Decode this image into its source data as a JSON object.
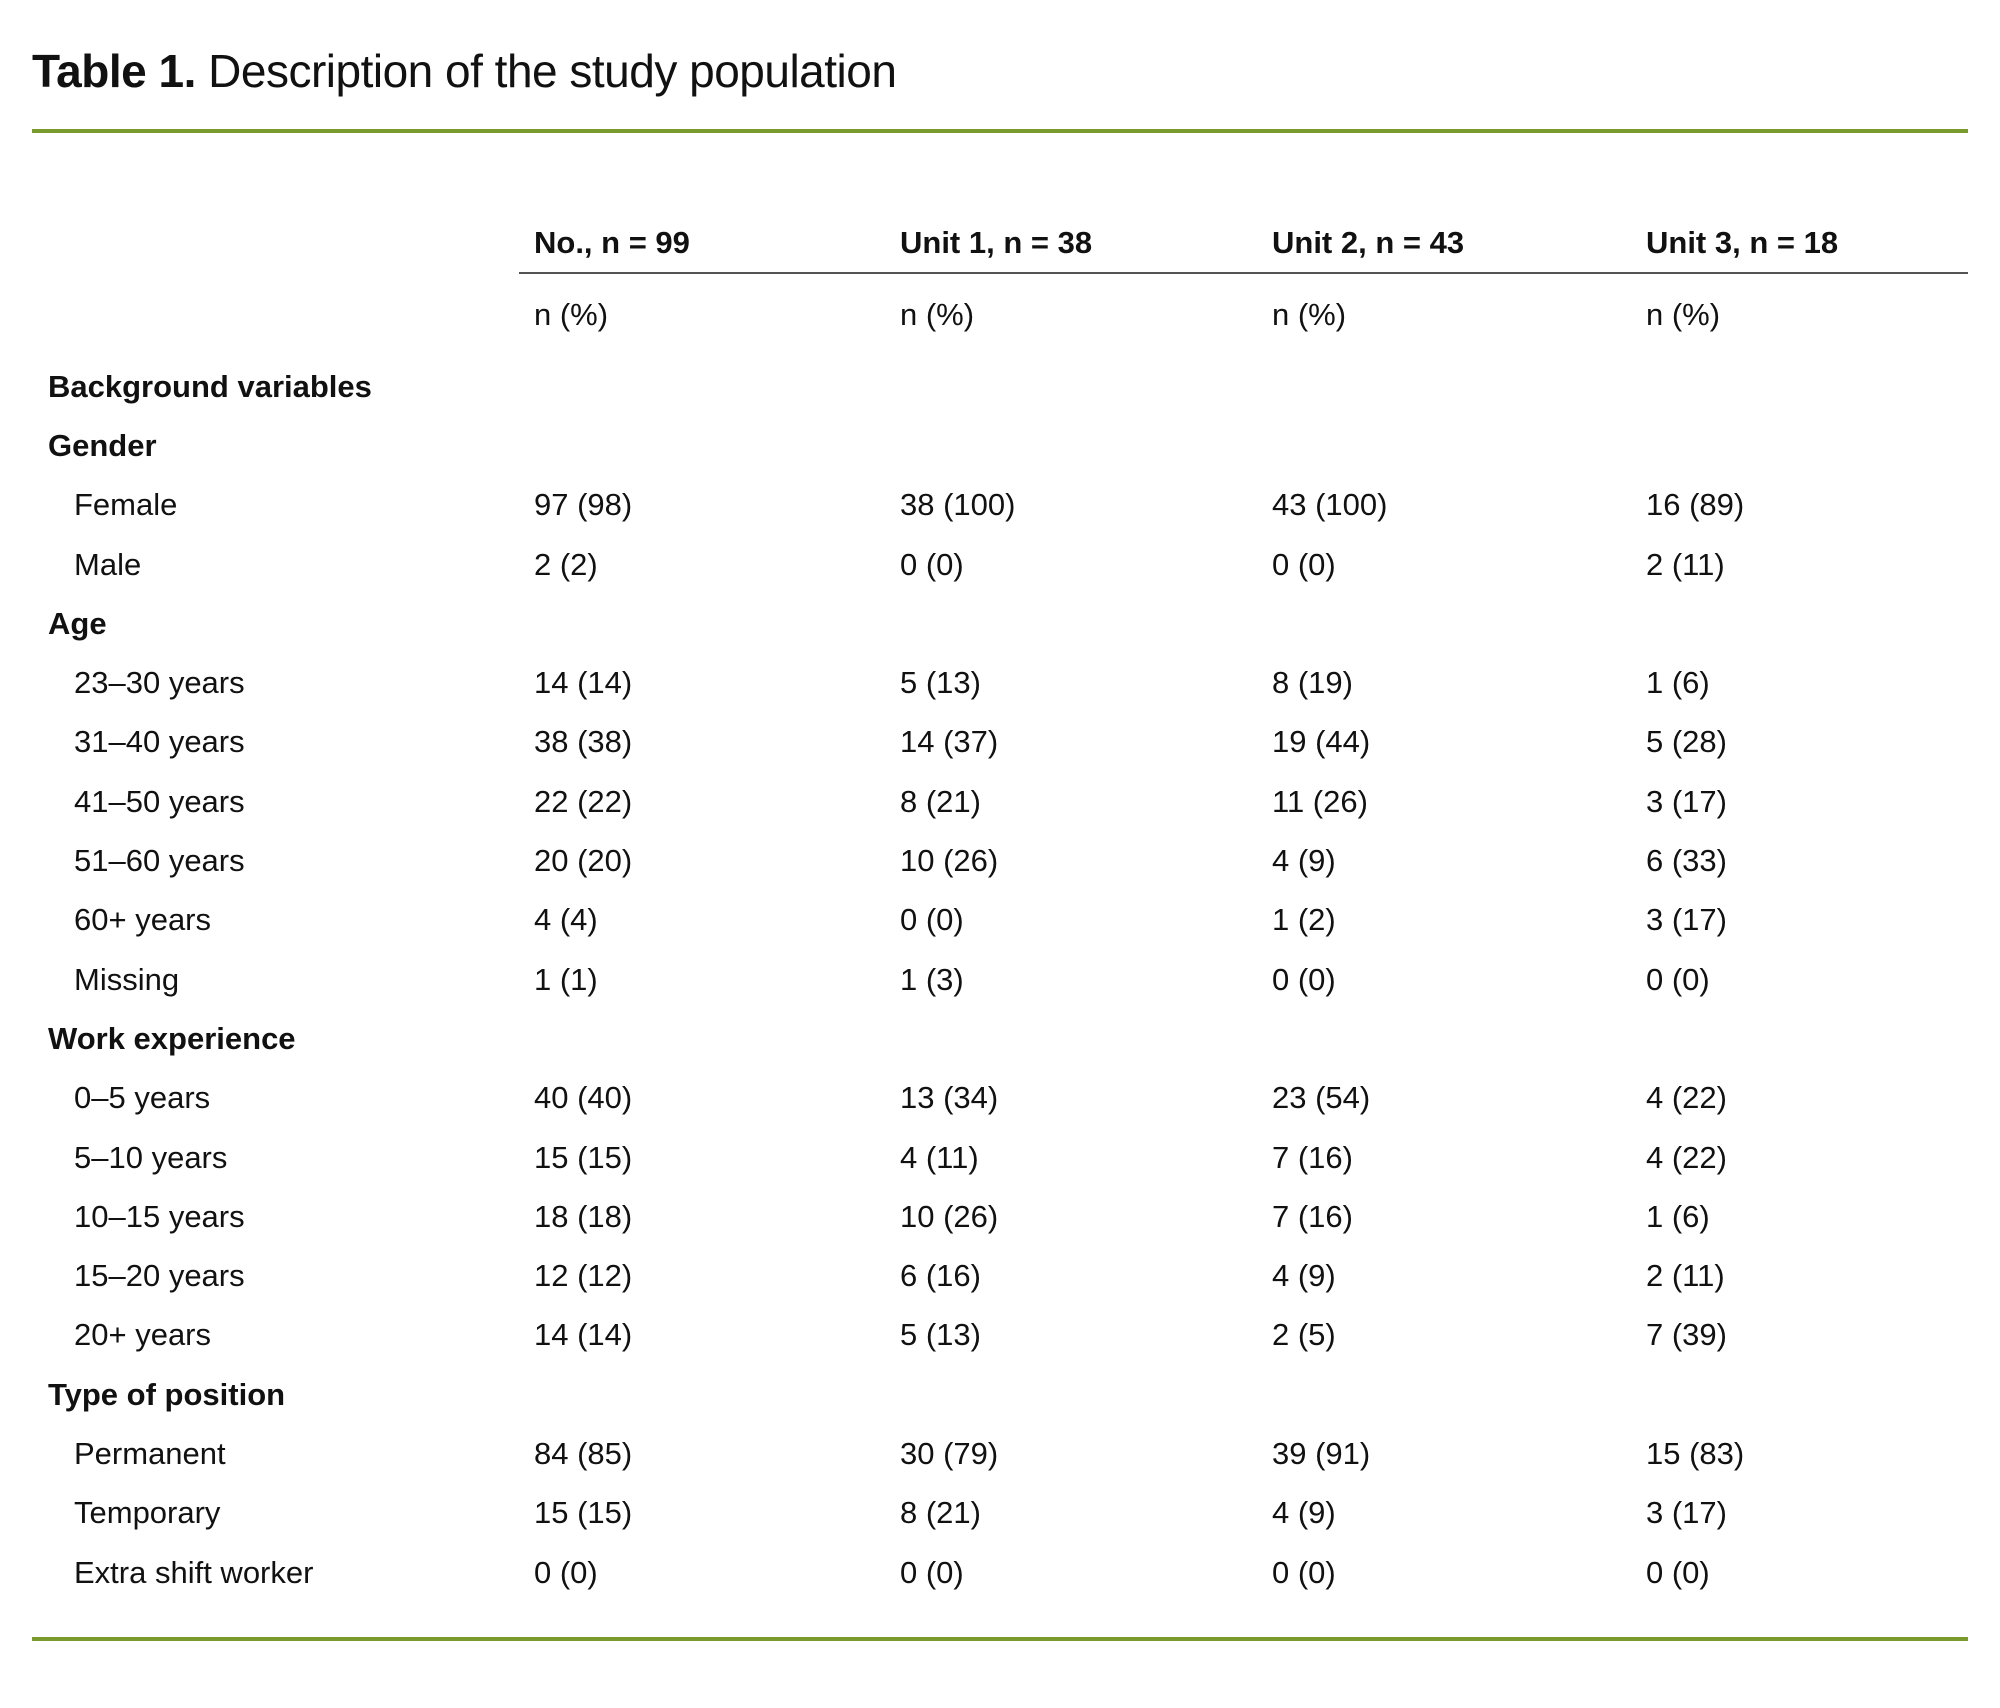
{
  "title": {
    "label": "Table 1.",
    "text": "Description of the study population"
  },
  "colors": {
    "rule": "#7a9a2e"
  },
  "columns": [
    "No., n = 99",
    "Unit 1, n = 38",
    "Unit 2, n = 43",
    "Unit 3, n = 18"
  ],
  "subheader": [
    "n (%)",
    "n (%)",
    "n (%)",
    "n (%)"
  ],
  "rows": [
    {
      "label": "Background variables",
      "section": true,
      "values": [
        "",
        "",
        "",
        ""
      ]
    },
    {
      "label": "Gender",
      "section": true,
      "values": [
        "",
        "",
        "",
        ""
      ]
    },
    {
      "label": "Female",
      "values": [
        "97 (98)",
        "38 (100)",
        "43 (100)",
        "16 (89)"
      ]
    },
    {
      "label": "Male",
      "values": [
        "2 (2)",
        "0 (0)",
        "0 (0)",
        "2 (11)"
      ]
    },
    {
      "label": "Age",
      "section": true,
      "values": [
        "",
        "",
        "",
        ""
      ]
    },
    {
      "label": "23–30 years",
      "values": [
        "14 (14)",
        "5 (13)",
        "8 (19)",
        "1 (6)"
      ]
    },
    {
      "label": "31–40 years",
      "values": [
        "38 (38)",
        "14 (37)",
        "19 (44)",
        "5 (28)"
      ]
    },
    {
      "label": "41–50 years",
      "values": [
        "22 (22)",
        "8 (21)",
        "11 (26)",
        "3 (17)"
      ]
    },
    {
      "label": "51–60 years",
      "values": [
        "20 (20)",
        "10 (26)",
        "4 (9)",
        "6 (33)"
      ]
    },
    {
      "label": "60+ years",
      "values": [
        "4 (4)",
        "0 (0)",
        "1 (2)",
        "3 (17)"
      ]
    },
    {
      "label": "Missing",
      "values": [
        "1 (1)",
        "1 (3)",
        "0 (0)",
        "0 (0)"
      ]
    },
    {
      "label": "Work experience",
      "section": true,
      "values": [
        "",
        "",
        "",
        ""
      ]
    },
    {
      "label": "0–5 years",
      "values": [
        "40 (40)",
        "13 (34)",
        "23 (54)",
        "4 (22)"
      ]
    },
    {
      "label": "5–10 years",
      "values": [
        "15 (15)",
        "4 (11)",
        "7 (16)",
        "4 (22)"
      ]
    },
    {
      "label": "10–15 years",
      "values": [
        "18 (18)",
        "10 (26)",
        "7 (16)",
        "1 (6)"
      ]
    },
    {
      "label": "15–20 years",
      "values": [
        "12 (12)",
        "6 (16)",
        "4 (9)",
        "2 (11)"
      ]
    },
    {
      "label": "20+ years",
      "values": [
        "14 (14)",
        "5 (13)",
        "2 (5)",
        "7 (39)"
      ]
    },
    {
      "label": "Type of position",
      "section": true,
      "values": [
        "",
        "",
        "",
        ""
      ]
    },
    {
      "label": "Permanent",
      "values": [
        "84 (85)",
        "30 (79)",
        "39 (91)",
        "15 (83)"
      ]
    },
    {
      "label": "Temporary",
      "values": [
        "15 (15)",
        "8 (21)",
        "4 (9)",
        "3 (17)"
      ]
    },
    {
      "label": "Extra shift worker",
      "values": [
        "0 (0)",
        "0 (0)",
        "0 (0)",
        "0 (0)"
      ]
    }
  ]
}
